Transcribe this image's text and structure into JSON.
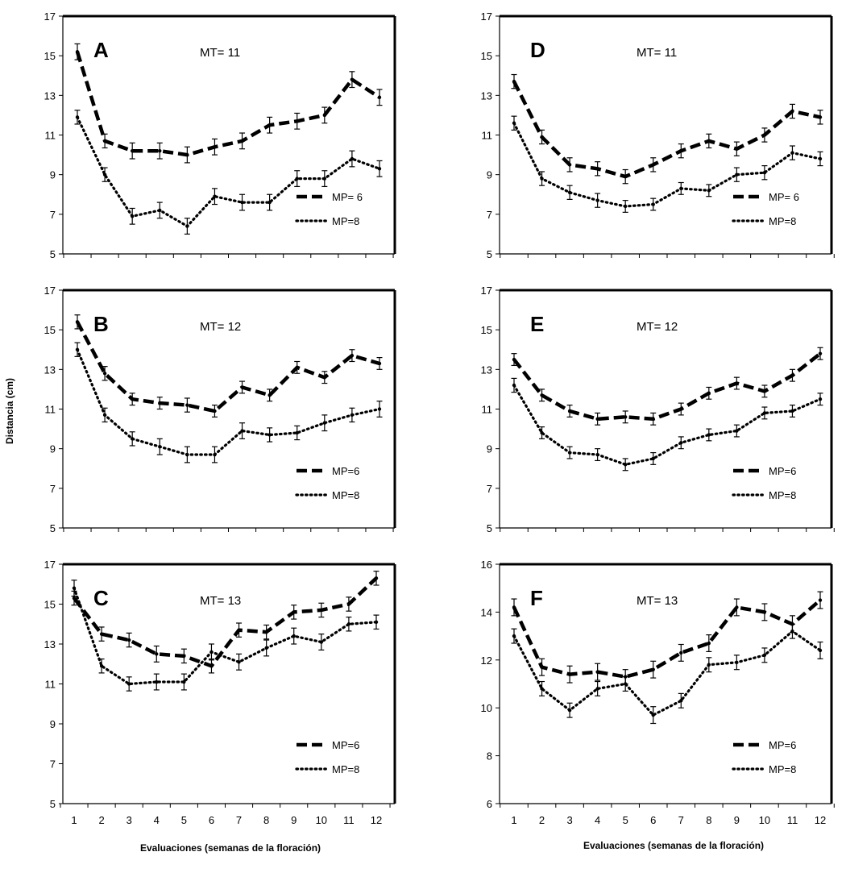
{
  "chart_data": [
    {
      "type": "line",
      "panel": "A",
      "annotation": "MT= 11",
      "ylim": [
        5,
        17
      ],
      "yticks": [
        5,
        7,
        9,
        11,
        13,
        15,
        17
      ],
      "categories": [
        "1",
        "2",
        "3",
        "4",
        "5",
        "6",
        "7",
        "8",
        "9",
        "10",
        "11",
        "12"
      ],
      "series": [
        {
          "name": "MP= 6",
          "style": "dashed",
          "values": [
            15.2,
            10.7,
            10.2,
            10.2,
            10.0,
            10.4,
            10.7,
            11.5,
            11.7,
            12.0,
            13.8,
            12.9
          ],
          "errors": [
            0.4,
            0.35,
            0.4,
            0.4,
            0.4,
            0.4,
            0.4,
            0.4,
            0.4,
            0.4,
            0.4,
            0.4
          ]
        },
        {
          "name": "MP=8",
          "style": "dotted",
          "values": [
            11.9,
            9.0,
            6.9,
            7.2,
            6.4,
            7.9,
            7.6,
            7.6,
            8.8,
            8.8,
            9.8,
            9.3
          ],
          "errors": [
            0.35,
            0.35,
            0.4,
            0.4,
            0.4,
            0.4,
            0.4,
            0.4,
            0.4,
            0.4,
            0.4,
            0.4
          ]
        }
      ]
    },
    {
      "type": "line",
      "panel": "B",
      "annotation": "MT= 12",
      "ylim": [
        5,
        17
      ],
      "yticks": [
        5,
        7,
        9,
        11,
        13,
        15,
        17
      ],
      "categories": [
        "1",
        "2",
        "3",
        "4",
        "5",
        "6",
        "7",
        "8",
        "9",
        "10",
        "11",
        "12"
      ],
      "series": [
        {
          "name": "MP=6",
          "style": "dashed",
          "values": [
            15.4,
            12.8,
            11.5,
            11.3,
            11.2,
            10.9,
            12.1,
            11.7,
            13.1,
            12.6,
            13.7,
            13.3
          ],
          "errors": [
            0.35,
            0.35,
            0.3,
            0.3,
            0.35,
            0.3,
            0.3,
            0.3,
            0.3,
            0.3,
            0.3,
            0.3
          ]
        },
        {
          "name": "MP=8",
          "style": "dotted",
          "values": [
            14.0,
            10.7,
            9.5,
            9.1,
            8.7,
            8.7,
            9.9,
            9.7,
            9.8,
            10.3,
            10.7,
            11.0
          ],
          "errors": [
            0.35,
            0.35,
            0.35,
            0.4,
            0.4,
            0.4,
            0.4,
            0.35,
            0.35,
            0.4,
            0.35,
            0.4
          ]
        }
      ]
    },
    {
      "type": "line",
      "panel": "C",
      "annotation": "MT= 13",
      "ylim": [
        5,
        17
      ],
      "yticks": [
        5,
        7,
        9,
        11,
        13,
        15,
        17
      ],
      "categories": [
        "1",
        "2",
        "3",
        "4",
        "5",
        "6",
        "7",
        "8",
        "9",
        "10",
        "11",
        "12"
      ],
      "series": [
        {
          "name": "MP=6",
          "style": "dashed",
          "values": [
            15.3,
            13.5,
            13.2,
            12.5,
            12.4,
            11.9,
            13.7,
            13.6,
            14.6,
            14.7,
            15.0,
            16.3
          ],
          "errors": [
            0.35,
            0.35,
            0.35,
            0.4,
            0.35,
            0.35,
            0.35,
            0.35,
            0.35,
            0.35,
            0.35,
            0.35
          ]
        },
        {
          "name": "MP=8",
          "style": "dotted",
          "values": [
            15.8,
            11.9,
            11.0,
            11.1,
            11.1,
            12.6,
            12.1,
            12.8,
            13.4,
            13.1,
            14.0,
            14.1
          ],
          "errors": [
            0.4,
            0.35,
            0.35,
            0.4,
            0.4,
            0.4,
            0.4,
            0.4,
            0.4,
            0.4,
            0.35,
            0.35
          ]
        }
      ]
    },
    {
      "type": "line",
      "panel": "D",
      "annotation": "MT= 11",
      "ylim": [
        5,
        17
      ],
      "yticks": [
        5,
        7,
        9,
        11,
        13,
        15,
        17
      ],
      "categories": [
        "1",
        "2",
        "3",
        "4",
        "5",
        "6",
        "7",
        "8",
        "9",
        "10",
        "11",
        "12"
      ],
      "series": [
        {
          "name": "MP= 6",
          "style": "dashed",
          "values": [
            13.7,
            10.9,
            9.5,
            9.3,
            8.9,
            9.5,
            10.2,
            10.7,
            10.3,
            11.0,
            12.2,
            11.9
          ],
          "errors": [
            0.35,
            0.35,
            0.35,
            0.35,
            0.35,
            0.35,
            0.35,
            0.35,
            0.35,
            0.35,
            0.35,
            0.35
          ]
        },
        {
          "name": "MP=8",
          "style": "dotted",
          "values": [
            11.6,
            8.8,
            8.1,
            7.7,
            7.4,
            7.5,
            8.3,
            8.2,
            9.0,
            9.1,
            10.1,
            9.8
          ],
          "errors": [
            0.35,
            0.35,
            0.35,
            0.35,
            0.3,
            0.3,
            0.3,
            0.3,
            0.35,
            0.35,
            0.35,
            0.35
          ]
        }
      ]
    },
    {
      "type": "line",
      "panel": "E",
      "annotation": "MT= 12",
      "ylim": [
        5,
        17
      ],
      "yticks": [
        5,
        7,
        9,
        11,
        13,
        15,
        17
      ],
      "categories": [
        "1",
        "2",
        "3",
        "4",
        "5",
        "6",
        "7",
        "8",
        "9",
        "10",
        "11",
        "12"
      ],
      "series": [
        {
          "name": "MP=6",
          "style": "dashed",
          "values": [
            13.5,
            11.7,
            10.9,
            10.5,
            10.6,
            10.5,
            11.0,
            11.8,
            12.3,
            11.9,
            12.7,
            13.8
          ],
          "errors": [
            0.3,
            0.3,
            0.3,
            0.3,
            0.3,
            0.3,
            0.3,
            0.3,
            0.3,
            0.3,
            0.3,
            0.3
          ]
        },
        {
          "name": "MP=8",
          "style": "dotted",
          "values": [
            12.2,
            9.8,
            8.8,
            8.7,
            8.2,
            8.5,
            9.3,
            9.7,
            9.9,
            10.8,
            10.9,
            11.5
          ],
          "errors": [
            0.35,
            0.3,
            0.3,
            0.3,
            0.3,
            0.3,
            0.3,
            0.3,
            0.3,
            0.3,
            0.3,
            0.3
          ]
        }
      ]
    },
    {
      "type": "line",
      "panel": "F",
      "annotation": "MT= 13",
      "ylim": [
        6,
        16
      ],
      "yticks": [
        6,
        8,
        10,
        12,
        14,
        16
      ],
      "categories": [
        "1",
        "2",
        "3",
        "4",
        "5",
        "6",
        "7",
        "8",
        "9",
        "10",
        "11",
        "12"
      ],
      "series": [
        {
          "name": "MP=6",
          "style": "dashed",
          "values": [
            14.2,
            11.7,
            11.4,
            11.5,
            11.3,
            11.6,
            12.3,
            12.7,
            14.2,
            14.0,
            13.5,
            14.5
          ],
          "errors": [
            0.35,
            0.35,
            0.35,
            0.35,
            0.3,
            0.35,
            0.35,
            0.35,
            0.35,
            0.35,
            0.35,
            0.35
          ]
        },
        {
          "name": "MP=8",
          "style": "dotted",
          "values": [
            13.0,
            10.8,
            9.9,
            10.8,
            11.0,
            9.7,
            10.3,
            11.8,
            11.9,
            12.2,
            13.2,
            12.4
          ],
          "errors": [
            0.3,
            0.3,
            0.3,
            0.3,
            0.3,
            0.35,
            0.3,
            0.3,
            0.3,
            0.3,
            0.3,
            0.35
          ]
        }
      ]
    }
  ],
  "labels": {
    "ylabel": "Distancia (cm)",
    "xlabel_left": "Evaluaciones  (semanas de la floración)",
    "xlabel_right": "Evaluaciones  (semanas de la floración)"
  }
}
